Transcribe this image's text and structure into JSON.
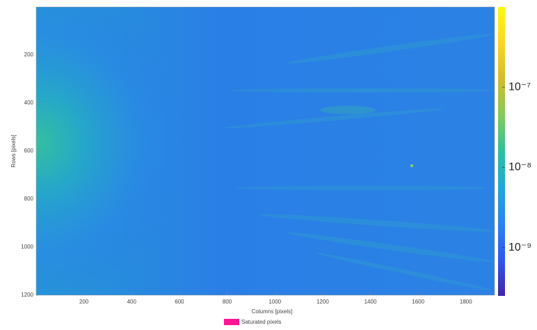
{
  "chart_data": {
    "type": "image",
    "x_label": "Columns [pixels]",
    "y_label": "Rows [pixels]",
    "xlim": [
      0,
      1920
    ],
    "xticks": [
      200,
      400,
      600,
      800,
      1000,
      1200,
      1400,
      1600,
      1800
    ],
    "ylim": [
      0,
      1200
    ],
    "yticks": [
      200,
      400,
      600,
      800,
      1000,
      1200
    ],
    "y_reversed": true,
    "colorbar": {
      "log_scale": true,
      "clim": [
        2.5e-10,
        1e-06
      ],
      "ticks": [
        {
          "value": 1e-09,
          "label": "10⁻⁹"
        },
        {
          "value": 1e-08,
          "label": "10⁻⁸"
        },
        {
          "value": 1e-07,
          "label": "10⁻⁷"
        }
      ],
      "colors": [
        "#3e26a8",
        "#2f58f3",
        "#2a83f0",
        "#1ea9d8",
        "#2dc09c",
        "#81cc59",
        "#d3bb2f",
        "#fbd524",
        "#f9fb0e"
      ]
    },
    "legend": {
      "name": "Saturated pixels",
      "color": "#ff1493"
    }
  }
}
